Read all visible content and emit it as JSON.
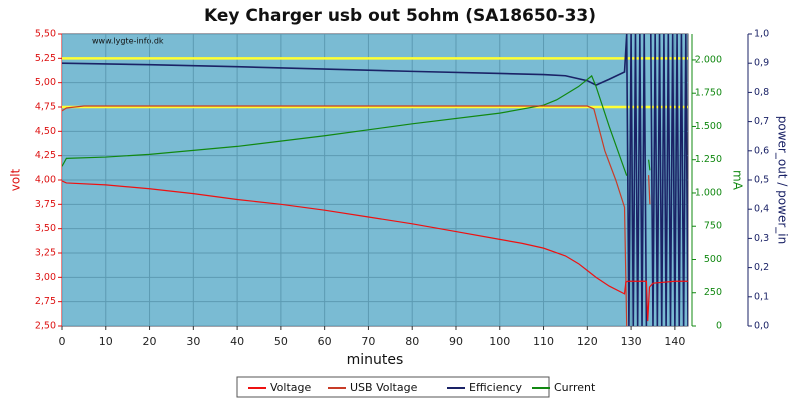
{
  "chart_data": {
    "type": "line",
    "title": "Key Charger usb out 5ohm (SA18650-33)",
    "watermark": "www.lygte-info.dk",
    "xlabel": "minutes",
    "ylabel": "volt",
    "y2label": "mA",
    "y3label": "power_out / power_in",
    "xlim": [
      0,
      143
    ],
    "xticks": [
      0,
      10,
      20,
      30,
      40,
      50,
      60,
      70,
      80,
      90,
      100,
      110,
      120,
      130,
      140
    ],
    "ylim": [
      2.5,
      5.5
    ],
    "yticks": [
      {
        "value": 2.5,
        "label": "2,50"
      },
      {
        "value": 2.75,
        "label": "2,75"
      },
      {
        "value": 3.0,
        "label": "3,00"
      },
      {
        "value": 3.25,
        "label": "3,25"
      },
      {
        "value": 3.5,
        "label": "3,50"
      },
      {
        "value": 3.75,
        "label": "3,75"
      },
      {
        "value": 4.0,
        "label": "4,00"
      },
      {
        "value": 4.25,
        "label": "4,25"
      },
      {
        "value": 4.5,
        "label": "4,50"
      },
      {
        "value": 4.75,
        "label": "4,75"
      },
      {
        "value": 5.0,
        "label": "5,00"
      },
      {
        "value": 5.25,
        "label": "5,25"
      },
      {
        "value": 5.5,
        "label": "5,50"
      }
    ],
    "y2lim": [
      0,
      2195
    ],
    "y2ticks": [
      0,
      250,
      500,
      750,
      {
        "value": 1000,
        "label": "1.000"
      },
      {
        "value": 1250,
        "label": "1.250"
      },
      {
        "value": 1500,
        "label": "1.500"
      },
      {
        "value": 1750,
        "label": "1.750"
      },
      {
        "value": 2000,
        "label": "2.000"
      }
    ],
    "y3lim": [
      0,
      1.0
    ],
    "y3ticks": [
      {
        "value": 0,
        "label": "0,0"
      },
      {
        "value": 0.1,
        "label": "0,1"
      },
      {
        "value": 0.2,
        "label": "0,2"
      },
      {
        "value": 0.3,
        "label": "0,3"
      },
      {
        "value": 0.4,
        "label": "0,4"
      },
      {
        "value": 0.5,
        "label": "0,5"
      },
      {
        "value": 0.6,
        "label": "0,6"
      },
      {
        "value": 0.7,
        "label": "0,7"
      },
      {
        "value": 0.8,
        "label": "0,8"
      },
      {
        "value": 0.9,
        "label": "0,9"
      },
      {
        "value": 1.0,
        "label": "1,0"
      }
    ],
    "reference_lines": {
      "color": "#ffff33",
      "values": [
        5.25,
        4.75
      ]
    },
    "grid": true,
    "series": [
      {
        "name": "Voltage",
        "color": "#ee1111",
        "axis": "y",
        "x": [
          0,
          1,
          10,
          20,
          30,
          40,
          50,
          60,
          70,
          80,
          90,
          100,
          105,
          110,
          115,
          118,
          120,
          122,
          125,
          128.5,
          128.8,
          129.2,
          133.5,
          133.8,
          134.2,
          135,
          140,
          143
        ],
        "values": [
          3.99,
          3.97,
          3.95,
          3.91,
          3.86,
          3.8,
          3.75,
          3.69,
          3.62,
          3.55,
          3.47,
          3.39,
          3.35,
          3.3,
          3.22,
          3.14,
          3.07,
          3.0,
          2.91,
          2.83,
          2.95,
          2.96,
          2.96,
          2.55,
          2.9,
          2.94,
          2.96,
          2.96
        ]
      },
      {
        "name": "USB Voltage",
        "color": "#c83c28",
        "axis": "y",
        "x": [
          0,
          1,
          5,
          120,
          121.5,
          124,
          126.5,
          128.5,
          129,
          133,
          134,
          134.3
        ],
        "values": [
          4.71,
          4.74,
          4.76,
          4.76,
          4.73,
          4.3,
          4.0,
          3.72,
          2.5,
          null,
          4.05,
          3.75
        ]
      },
      {
        "name": "Efficiency",
        "color": "#1a2266",
        "axis": "y3",
        "x": [
          0,
          20,
          40,
          60,
          80,
          100,
          110,
          115,
          120,
          122,
          125,
          128.5,
          129,
          129.5,
          130,
          130.5,
          131,
          131.5,
          132,
          132.5,
          133,
          133.5,
          133.8,
          134.5,
          135,
          135.5,
          136,
          136.5,
          137,
          137.5,
          138,
          138.5,
          139,
          139.5,
          140,
          140.5,
          141,
          141.5,
          142,
          142.5,
          143
        ],
        "values": [
          0.9,
          0.895,
          0.888,
          0.88,
          0.872,
          0.865,
          0.861,
          0.857,
          0.84,
          0.825,
          0.845,
          0.87,
          1.0,
          0,
          1.0,
          0,
          1.0,
          0,
          1.0,
          0,
          1.0,
          0,
          null,
          1.0,
          0,
          1.0,
          0,
          1.0,
          0,
          1.0,
          0,
          1.0,
          0,
          1.0,
          0,
          1.0,
          0,
          1.0,
          0,
          1.0,
          0
        ]
      },
      {
        "name": "Current",
        "color": "#118811",
        "axis": "y2",
        "x": [
          0,
          1,
          10,
          20,
          40,
          60,
          80,
          100,
          110,
          113,
          118,
          121,
          122,
          125,
          129,
          133,
          134,
          134.3
        ],
        "values": [
          1200,
          1260,
          1270,
          1290,
          1350,
          1430,
          1520,
          1600,
          1660,
          1700,
          1800,
          1880,
          1800,
          1500,
          1130,
          null,
          1250,
          1170
        ]
      }
    ]
  }
}
